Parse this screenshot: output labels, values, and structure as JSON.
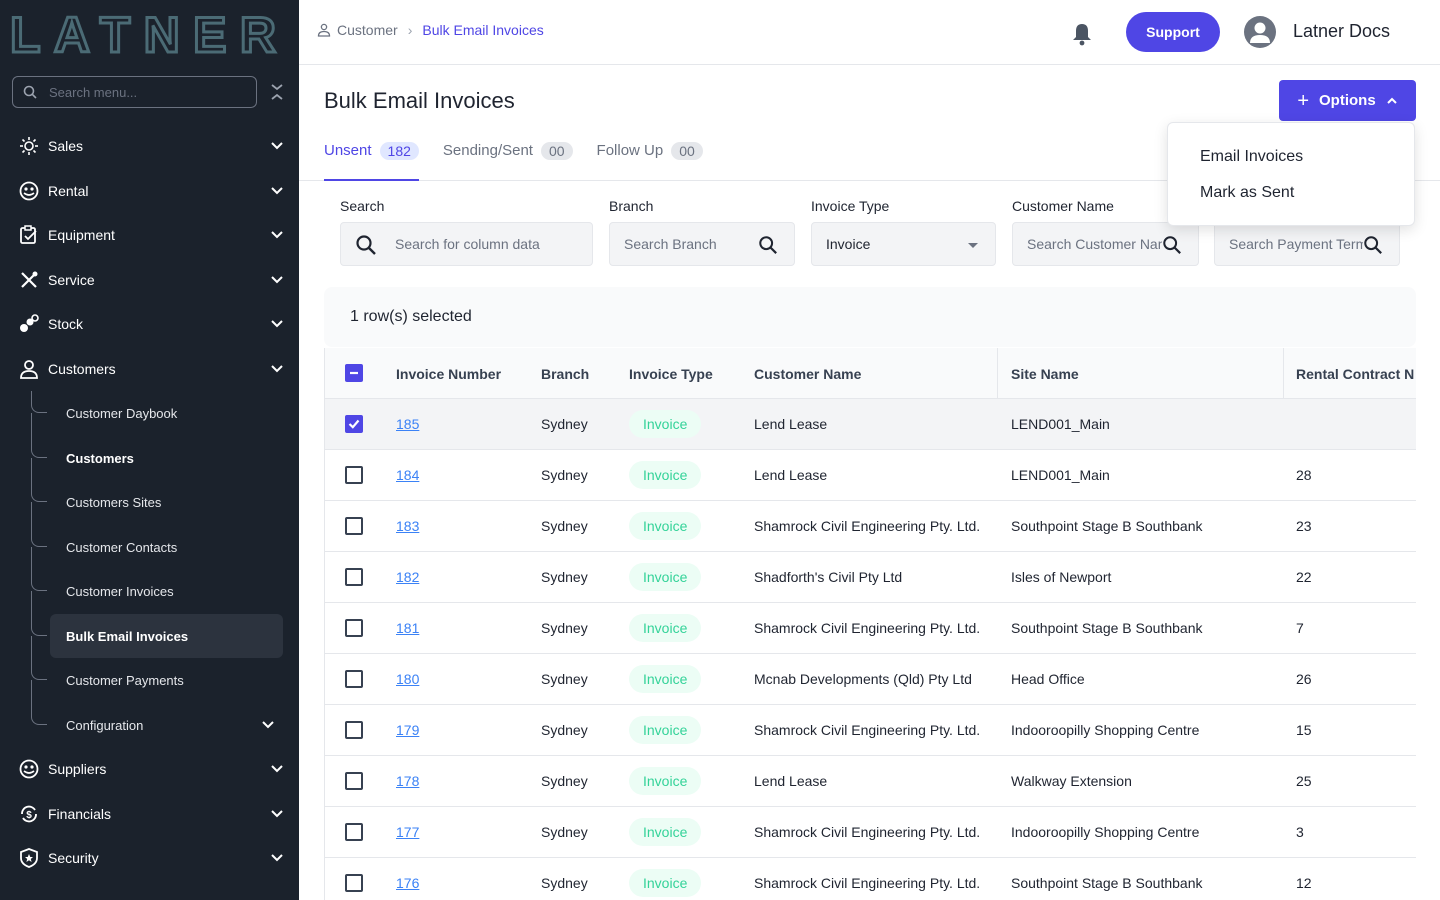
{
  "brand": {
    "logo_text": "LATNER",
    "accent": "#4f46e5",
    "sidebar_bg": "#1b222c"
  },
  "sidebar": {
    "search_placeholder": "Search menu...",
    "items": [
      {
        "label": "Sales",
        "icon": "sun-gear-icon"
      },
      {
        "label": "Rental",
        "icon": "handshake-icon"
      },
      {
        "label": "Equipment",
        "icon": "clipboard-icon"
      },
      {
        "label": "Service",
        "icon": "tools-icon"
      },
      {
        "label": "Stock",
        "icon": "boxes-icon"
      },
      {
        "label": "Customers",
        "icon": "person-icon"
      },
      {
        "label": "Suppliers",
        "icon": "handshake-icon"
      },
      {
        "label": "Financials",
        "icon": "dollar-cycle-icon"
      },
      {
        "label": "Security",
        "icon": "shield-icon"
      }
    ],
    "customers_sub": [
      {
        "label": "Customer Daybook"
      },
      {
        "label": "Customers"
      },
      {
        "label": "Customers Sites"
      },
      {
        "label": "Customer Contacts"
      },
      {
        "label": "Customer Invoices"
      },
      {
        "label": "Bulk Email Invoices"
      },
      {
        "label": "Customer Payments"
      },
      {
        "label": "Configuration"
      }
    ]
  },
  "header": {
    "breadcrumb": [
      "Customer",
      "Bulk Email Invoices"
    ],
    "support_label": "Support",
    "user_name": "Latner Docs"
  },
  "page": {
    "title": "Bulk Email Invoices",
    "options_label": "Options",
    "options_menu": [
      "Email Invoices",
      "Mark as Sent"
    ],
    "tabs": [
      {
        "label": "Unsent",
        "count": "182"
      },
      {
        "label": "Sending/Sent",
        "count": "00"
      },
      {
        "label": "Follow Up",
        "count": "00"
      }
    ],
    "filters": {
      "search": {
        "label": "Search",
        "placeholder": "Search for column data"
      },
      "branch": {
        "label": "Branch",
        "placeholder": "Search Branch"
      },
      "invoice_type": {
        "label": "Invoice Type",
        "value": "Invoice"
      },
      "customer_name": {
        "label": "Customer Name",
        "placeholder": "Search Customer Name"
      },
      "payment_terms": {
        "placeholder": "Search Payment Terms"
      }
    },
    "selected_text": "1 row(s) selected"
  },
  "table": {
    "headers": [
      "Invoice Number",
      "Branch",
      "Invoice Type",
      "Customer Name",
      "Site Name",
      "Rental Contract N"
    ],
    "rows": [
      {
        "invoice": "185",
        "branch": "Sydney",
        "type": "Invoice",
        "customer": "Lend Lease",
        "site": "LEND001_Main",
        "contract": "",
        "checked": true
      },
      {
        "invoice": "184",
        "branch": "Sydney",
        "type": "Invoice",
        "customer": "Lend Lease",
        "site": "LEND001_Main",
        "contract": "28",
        "checked": false
      },
      {
        "invoice": "183",
        "branch": "Sydney",
        "type": "Invoice",
        "customer": "Shamrock Civil Engineering Pty. Ltd.",
        "site": "Southpoint Stage B Southbank",
        "contract": "23",
        "checked": false
      },
      {
        "invoice": "182",
        "branch": "Sydney",
        "type": "Invoice",
        "customer": "Shadforth's Civil Pty Ltd",
        "site": "Isles of Newport",
        "contract": "22",
        "checked": false
      },
      {
        "invoice": "181",
        "branch": "Sydney",
        "type": "Invoice",
        "customer": "Shamrock Civil Engineering Pty. Ltd.",
        "site": "Southpoint Stage B Southbank",
        "contract": "7",
        "checked": false
      },
      {
        "invoice": "180",
        "branch": "Sydney",
        "type": "Invoice",
        "customer": "Mcnab Developments (Qld) Pty Ltd",
        "site": "Head Office",
        "contract": "26",
        "checked": false
      },
      {
        "invoice": "179",
        "branch": "Sydney",
        "type": "Invoice",
        "customer": "Shamrock Civil Engineering Pty. Ltd.",
        "site": "Indooroopilly Shopping Centre",
        "contract": "15",
        "checked": false
      },
      {
        "invoice": "178",
        "branch": "Sydney",
        "type": "Invoice",
        "customer": "Lend Lease",
        "site": "Walkway Extension",
        "contract": "25",
        "checked": false
      },
      {
        "invoice": "177",
        "branch": "Sydney",
        "type": "Invoice",
        "customer": "Shamrock Civil Engineering Pty. Ltd.",
        "site": "Indooroopilly Shopping Centre",
        "contract": "3",
        "checked": false
      },
      {
        "invoice": "176",
        "branch": "Sydney",
        "type": "Invoice",
        "customer": "Shamrock Civil Engineering Pty. Ltd.",
        "site": "Southpoint Stage B Southbank",
        "contract": "12",
        "checked": false
      }
    ]
  }
}
